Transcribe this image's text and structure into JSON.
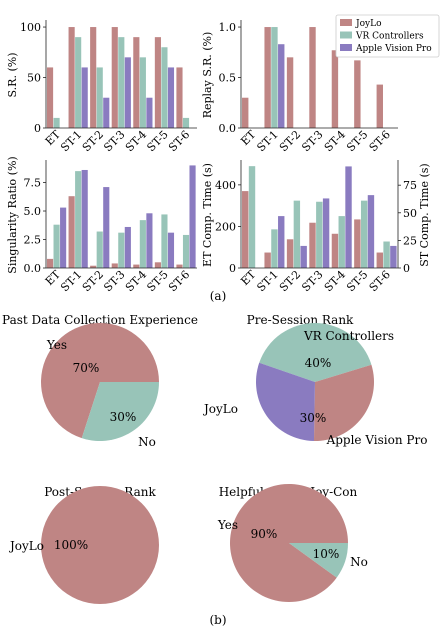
{
  "colors": {
    "joylo": "#bf8584",
    "vr": "#98c4b8",
    "avp": "#8a7bc0"
  },
  "chart_data": [
    {
      "id": "sr",
      "type": "bar",
      "categories": [
        "ET",
        "ST-1",
        "ST-2",
        "ST-3",
        "ST-4",
        "ST-5",
        "ST-6"
      ],
      "series": [
        {
          "name": "JoyLo",
          "values": [
            60,
            100,
            100,
            100,
            90,
            90,
            60
          ]
        },
        {
          "name": "VR Controllers",
          "values": [
            10,
            90,
            60,
            90,
            70,
            80,
            10
          ]
        },
        {
          "name": "Apple Vision Pro",
          "values": [
            0,
            60,
            30,
            70,
            30,
            60,
            0
          ]
        }
      ],
      "ylabel": "S.R. (%)",
      "ylim": [
        0,
        105
      ],
      "yticks": [
        0,
        50,
        100
      ]
    },
    {
      "id": "replay",
      "type": "bar",
      "categories": [
        "ET",
        "ST-1",
        "ST-2",
        "ST-3",
        "ST-4",
        "ST-5",
        "ST-6"
      ],
      "series": [
        {
          "name": "JoyLo",
          "values": [
            0.3,
            1.0,
            0.7,
            1.0,
            0.77,
            0.67,
            0.43
          ]
        },
        {
          "name": "VR Controllers",
          "values": [
            0,
            1.0,
            0,
            0,
            0,
            0,
            0
          ]
        },
        {
          "name": "Apple Vision Pro",
          "values": [
            0,
            0.83,
            0,
            0,
            0,
            0,
            0
          ]
        }
      ],
      "ylabel": "Replay S.R. (%)",
      "ylim": [
        0,
        1.05
      ],
      "yticks": [
        0.0,
        0.5,
        1.0
      ],
      "legend": {
        "placement": "top-right",
        "entries": [
          "JoyLo",
          "VR Controllers",
          "Apple Vision Pro"
        ]
      }
    },
    {
      "id": "singularity",
      "type": "bar",
      "categories": [
        "ET",
        "ST-1",
        "ST-2",
        "ST-3",
        "ST-4",
        "ST-5",
        "ST-6"
      ],
      "series": [
        {
          "name": "JoyLo",
          "values": [
            0.8,
            6.3,
            0.2,
            0.4,
            0.3,
            0.5,
            0.3
          ]
        },
        {
          "name": "VR Controllers",
          "values": [
            3.8,
            8.5,
            3.2,
            3.1,
            4.2,
            4.7,
            2.9
          ]
        },
        {
          "name": "Apple Vision Pro",
          "values": [
            5.3,
            8.6,
            7.1,
            3.6,
            4.8,
            3.1,
            9.0
          ]
        }
      ],
      "ylabel": "Singularity Ratio (%)",
      "ylim": [
        0,
        9.3
      ],
      "yticks": [
        0.0,
        2.5,
        5.0,
        7.5
      ]
    },
    {
      "id": "comptime",
      "type": "bar",
      "categories": [
        "ET",
        "ST-1",
        "ST-2",
        "ST-3",
        "ST-4",
        "ST-5",
        "ST-6"
      ],
      "series": [
        {
          "name": "JoyLo",
          "values": [
            370,
            14,
            26,
            41,
            31,
            44,
            14
          ]
        },
        {
          "name": "VR Controllers",
          "values": [
            490,
            35,
            61,
            60,
            47,
            61,
            24
          ]
        },
        {
          "name": "Apple Vision Pro",
          "values": [
            0,
            47,
            20,
            63,
            92,
            66,
            20
          ]
        }
      ],
      "ylabel": "ET Comp. Time (s)",
      "y2label": "ST Comp. Time (s)",
      "ylim": [
        0,
        510
      ],
      "yticks": [
        0,
        200,
        400
      ],
      "y2lim": [
        0,
        96
      ],
      "y2ticks": [
        0,
        25,
        50,
        75
      ],
      "note": "ET uses left axis; ST-1..ST-6 use right axis"
    },
    {
      "id": "past",
      "type": "pie",
      "title": "Past Data Collection Experience",
      "slices": [
        {
          "label": "Yes",
          "value": 70,
          "pct": "70%"
        },
        {
          "label": "No",
          "value": 30,
          "pct": "30%"
        }
      ]
    },
    {
      "id": "pre",
      "type": "pie",
      "title": "Pre-Session Rank",
      "slices": [
        {
          "label": "VR Controllers",
          "value": 40,
          "pct": "40%"
        },
        {
          "label": "JoyLo",
          "value": 30,
          "pct": "30%"
        },
        {
          "label": "Apple Vision Pro",
          "value": 30,
          "pct": "30%"
        }
      ]
    },
    {
      "id": "post",
      "type": "pie",
      "title": "Post-Session Rank",
      "slices": [
        {
          "label": "JoyLo",
          "value": 100,
          "pct": "100%"
        }
      ]
    },
    {
      "id": "help",
      "type": "pie",
      "title": "Helpfulness of Joy-Con",
      "slices": [
        {
          "label": "Yes",
          "value": 90,
          "pct": "90%"
        },
        {
          "label": "No",
          "value": 10,
          "pct": "10%"
        }
      ]
    }
  ],
  "captions": {
    "a": "(a)",
    "b": "(b)"
  }
}
